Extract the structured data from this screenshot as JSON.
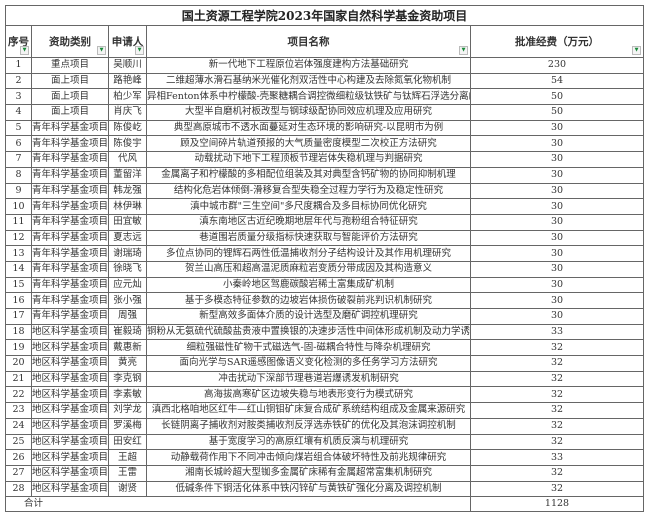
{
  "title": "国土资源工程学院2023年国家自然科学基金资助项目",
  "headers": {
    "no": "序号",
    "type": "资助类别",
    "applicant": "申请人",
    "project": "项目名称",
    "funding": "批准经费（万元）"
  },
  "rows": [
    {
      "no": "1",
      "type": "重点项目",
      "applicant": "吴顺川",
      "project": "新一代地下工程原位岩体强度建构方法基础研究",
      "funding": "230"
    },
    {
      "no": "2",
      "type": "面上项目",
      "applicant": "路艳峰",
      "project": "二维超薄水滑石基纳米光催化剂双活性中心构建及去除氮氧化物机制",
      "funding": "54"
    },
    {
      "no": "3",
      "type": "面上项目",
      "applicant": "柏少军",
      "project": "异相Fenton体系中柠檬酸-壳聚糖耦合调控微细粒级钛铁矿与钛辉石浮选分离的机制",
      "funding": "50"
    },
    {
      "no": "4",
      "type": "面上项目",
      "applicant": "肖庆飞",
      "project": "大型半自磨机衬板改型与钢球级配协同效应机理及应用研究",
      "funding": "50"
    },
    {
      "no": "5",
      "type": "青年科学基金项目",
      "applicant": "陈俊屹",
      "project": "典型高原城市不透水面蔓延对生态环境的影响研究-以昆明市为例",
      "funding": "30"
    },
    {
      "no": "6",
      "type": "青年科学基金项目",
      "applicant": "陈俊宇",
      "project": "顾及空间碎片轨道预报的大气质量密度模型二次校正方法研究",
      "funding": "30"
    },
    {
      "no": "7",
      "type": "青年科学基金项目",
      "applicant": "代风",
      "project": "动载扰动下地下工程顶板节理岩体失稳机理与判据研究",
      "funding": "30"
    },
    {
      "no": "8",
      "type": "青年科学基金项目",
      "applicant": "董留洋",
      "project": "金属离子和柠檬酸的多相配位组装及其对典型含钙矿物的协同抑制机理",
      "funding": "30"
    },
    {
      "no": "9",
      "type": "青年科学基金项目",
      "applicant": "韩龙强",
      "project": "结构化危岩体倾倒-滑移复合型失稳全过程力学行为及稳定性研究",
      "funding": "30"
    },
    {
      "no": "10",
      "type": "青年科学基金项目",
      "applicant": "林伊琳",
      "project": "滇中城市群\"三生空间\"多尺度耦合及多目标协同优化研究",
      "funding": "30"
    },
    {
      "no": "11",
      "type": "青年科学基金项目",
      "applicant": "田宜敏",
      "project": "滇东南地区古近纪晚期地层年代与孢粉组合特征研究",
      "funding": "30"
    },
    {
      "no": "12",
      "type": "青年科学基金项目",
      "applicant": "夏志远",
      "project": "巷道围岩质量分级指标快速获取与智能评价方法研究",
      "funding": "30"
    },
    {
      "no": "13",
      "type": "青年科学基金项目",
      "applicant": "谢瑞琦",
      "project": "多位点协同的锂辉石两性低温捕收剂分子结构设计及其作用机理研究",
      "funding": "30"
    },
    {
      "no": "14",
      "type": "青年科学基金项目",
      "applicant": "徐晓飞",
      "project": "贺兰山高压和超高温泥质麻粒岩变质分带成因及其构造意义",
      "funding": "30"
    },
    {
      "no": "15",
      "type": "青年科学基金项目",
      "applicant": "应元灿",
      "project": "小秦岭地区驾鹿碳酸岩稀土富集成矿机制",
      "funding": "30"
    },
    {
      "no": "16",
      "type": "青年科学基金项目",
      "applicant": "张小强",
      "project": "基于多模态特征参数的边坡岩体损伤破裂前兆判识机制研究",
      "funding": "30"
    },
    {
      "no": "17",
      "type": "青年科学基金项目",
      "applicant": "周强",
      "project": "新型高效多面体介质的设计选型及磨矿调控机理研究",
      "funding": "30"
    },
    {
      "no": "18",
      "type": "地区科学基金项目",
      "applicant": "崔毅琦",
      "project": "铜粉从无氨硫代硫酸盐贵液中置换银的决速步活性中间体形成机制及动力学诱导调控",
      "funding": "33"
    },
    {
      "no": "19",
      "type": "地区科学基金项目",
      "applicant": "戴惠新",
      "project": "细粒强磁性矿物干式磁选气-固-磁耦合特性与降杂机理研究",
      "funding": "32"
    },
    {
      "no": "20",
      "type": "地区科学基金项目",
      "applicant": "黄亮",
      "project": "面向光学与SAR遥感图像语义变化检测的多任务学习方法研究",
      "funding": "32"
    },
    {
      "no": "21",
      "type": "地区科学基金项目",
      "applicant": "李克钢",
      "project": "冲击扰动下深部节理巷道岩爆诱发机制研究",
      "funding": "32"
    },
    {
      "no": "22",
      "type": "地区科学基金项目",
      "applicant": "李素敏",
      "project": "高海拔高寒矿区边坡失稳与地表形变行为模式研究",
      "funding": "32"
    },
    {
      "no": "23",
      "type": "地区科学基金项目",
      "applicant": "刘学龙",
      "project": "滇西北格咱地区红牛—红山铜钼矿床复合成矿系统结构组成及金属来源研究",
      "funding": "32"
    },
    {
      "no": "24",
      "type": "地区科学基金项目",
      "applicant": "罗溪梅",
      "project": "长链阴离子捕收剂对胺类捕收剂反浮选赤铁矿的优化及其泡沫调控机制",
      "funding": "32"
    },
    {
      "no": "25",
      "type": "地区科学基金项目",
      "applicant": "田安红",
      "project": "基于宽度学习的高原红壤有机质反演与机理研究",
      "funding": "32"
    },
    {
      "no": "26",
      "type": "地区科学基金项目",
      "applicant": "王超",
      "project": "动静载荷作用下不同冲击倾向煤岩组合体破坏特性及前兆规律研究",
      "funding": "33"
    },
    {
      "no": "27",
      "type": "地区科学基金项目",
      "applicant": "王雷",
      "project": "湘南长城岭超大型铷多金属矿床稀有金属超常富集机制研究",
      "funding": "32"
    },
    {
      "no": "28",
      "type": "地区科学基金项目",
      "applicant": "谢贤",
      "project": "低碱条件下铜活化体系中铁闪锌矿与黄铁矿强化分离及调控机制",
      "funding": "32"
    }
  ],
  "total": {
    "label": "合计",
    "value": "1128"
  },
  "icons": {
    "filter": "filter-dropdown-icon"
  },
  "colors": {
    "filter_arrow": "#1a8a3a",
    "border": "#666666"
  }
}
